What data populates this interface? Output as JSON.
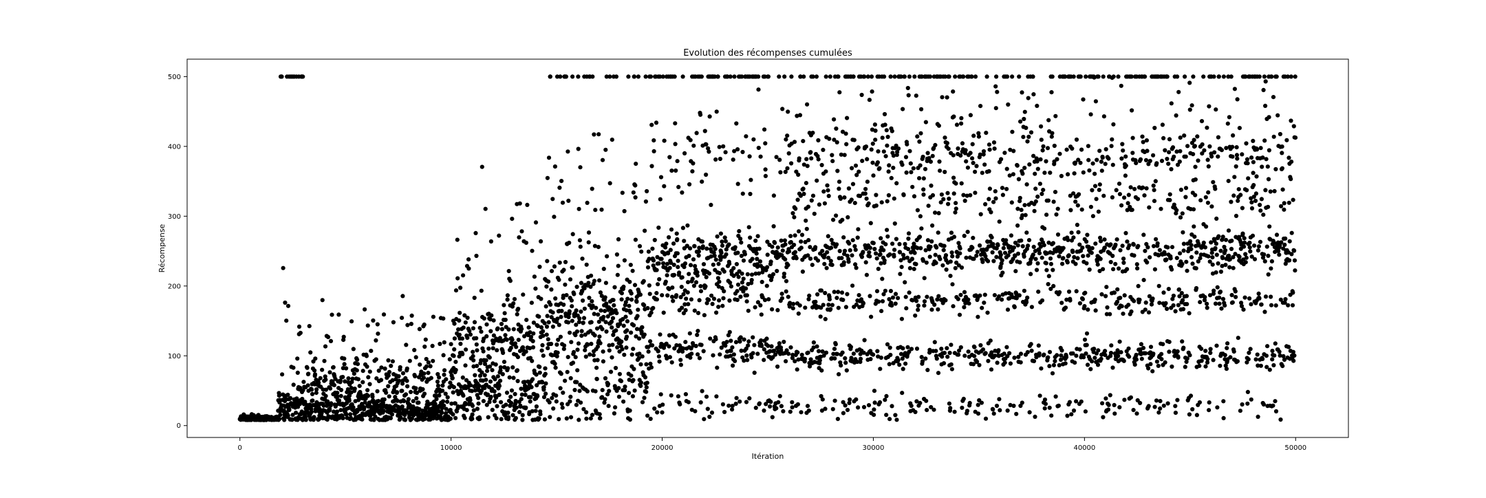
{
  "chart_data": {
    "type": "scatter",
    "title": "Evolution des récompenses cumulées",
    "xlabel": "Itération",
    "ylabel": "Récompense",
    "xlim": [
      -2500,
      52500
    ],
    "ylim": [
      -17,
      525
    ],
    "x_ticks": [
      0,
      10000,
      20000,
      30000,
      40000,
      50000
    ],
    "x_tick_labels": [
      "0",
      "10000",
      "20000",
      "30000",
      "40000",
      "50000"
    ],
    "y_ticks": [
      0,
      100,
      200,
      300,
      400,
      500
    ],
    "y_tick_labels": [
      "0",
      "100",
      "200",
      "300",
      "400",
      "500"
    ],
    "grid": false,
    "legend": "none",
    "marker_color": "#000000",
    "series": [
      {
        "points_per_iteration": 1,
        "iterations": [
          0,
          50000
        ],
        "regimes": [
          {
            "from": 0,
            "to": 1800,
            "levels": [
              {
                "center": 10,
                "spread": 2,
                "weight": 1
              }
            ]
          },
          {
            "from": 1800,
            "to": 3000,
            "levels": [
              {
                "center": 25,
                "spread": 15,
                "weight": 0.82
              },
              {
                "center": 120,
                "spread": 40,
                "weight": 0.1
              },
              {
                "center": 500,
                "spread": 0,
                "weight": 0.08
              }
            ]
          },
          {
            "from": 3000,
            "to": 10000,
            "levels": [
              {
                "center": 20,
                "spread": 10,
                "weight": 0.5
              },
              {
                "center": 55,
                "spread": 25,
                "weight": 0.45
              },
              {
                "center": 130,
                "spread": 25,
                "weight": 0.05
              }
            ]
          },
          {
            "from": 10000,
            "to": 14500,
            "levels": [
              {
                "center": 40,
                "spread": 25,
                "weight": 0.45
              },
              {
                "center": 115,
                "spread": 40,
                "weight": 0.5
              },
              {
                "center": 240,
                "spread": 50,
                "weight": 0.05
              }
            ]
          },
          {
            "from": 14500,
            "to": 19500,
            "levels": [
              {
                "center": 40,
                "spread": 20,
                "weight": 0.2
              },
              {
                "center": 150,
                "spread": 45,
                "weight": 0.65
              },
              {
                "center": 300,
                "spread": 70,
                "weight": 0.1
              },
              {
                "center": 500,
                "spread": 0,
                "weight": 0.05
              }
            ]
          },
          {
            "from": 19500,
            "to": 26000,
            "levels": [
              {
                "center": 30,
                "spread": 8,
                "weight": 0.08
              },
              {
                "center": 110,
                "spread": 12,
                "weight": 0.2
              },
              {
                "center": 185,
                "spread": 12,
                "weight": 0.12
              },
              {
                "center": 240,
                "spread": 20,
                "weight": 0.4
              },
              {
                "center": 390,
                "spread": 40,
                "weight": 0.12
              },
              {
                "center": 500,
                "spread": 0,
                "weight": 0.08
              }
            ]
          },
          {
            "from": 26000,
            "to": 50000,
            "levels": [
              {
                "center": 28,
                "spread": 8,
                "weight": 0.06
              },
              {
                "center": 100,
                "spread": 10,
                "weight": 0.18
              },
              {
                "center": 180,
                "spread": 10,
                "weight": 0.12
              },
              {
                "center": 250,
                "spread": 14,
                "weight": 0.28
              },
              {
                "center": 325,
                "spread": 15,
                "weight": 0.1
              },
              {
                "center": 385,
                "spread": 18,
                "weight": 0.14
              },
              {
                "center": 450,
                "spread": 30,
                "weight": 0.05
              },
              {
                "center": 500,
                "spread": 0,
                "weight": 0.07
              }
            ]
          }
        ]
      }
    ]
  }
}
